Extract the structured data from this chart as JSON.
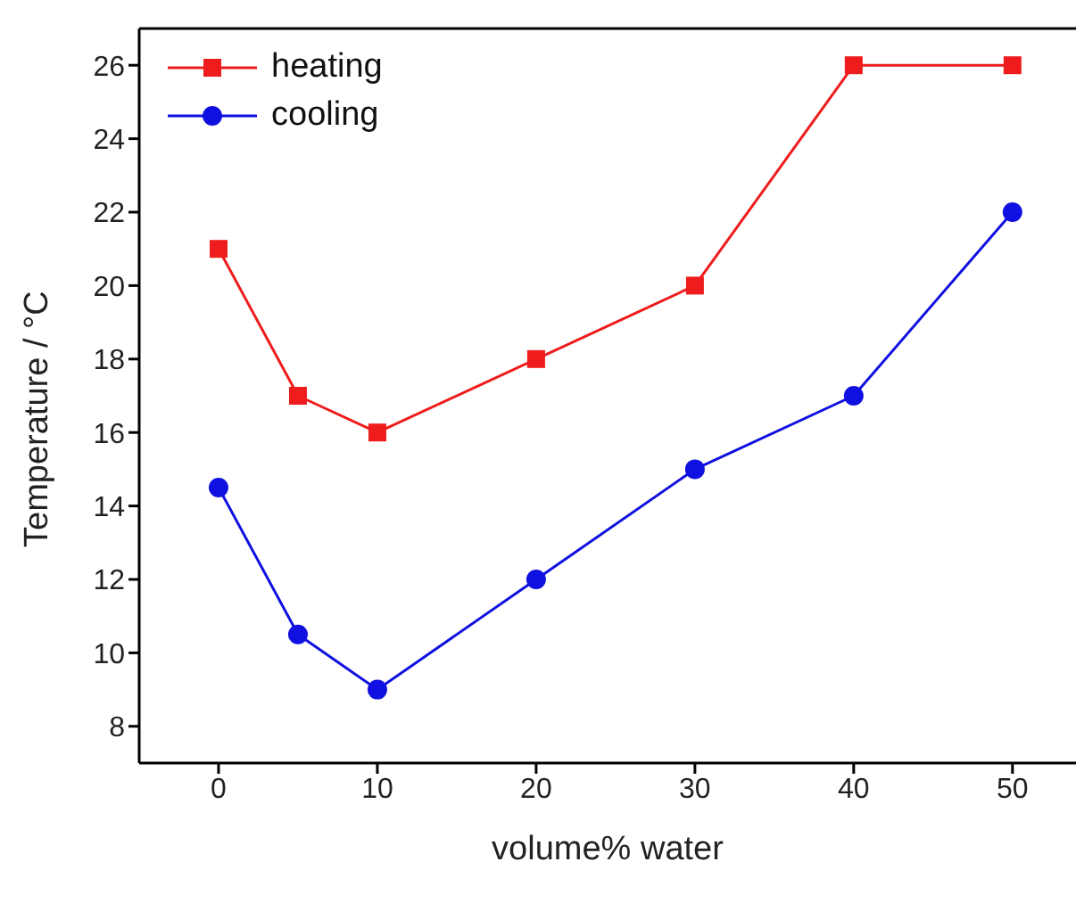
{
  "chart_data": {
    "type": "line",
    "xlabel": "volume% water",
    "ylabel": "Temperature / °C",
    "x": [
      0,
      5,
      10,
      20,
      30,
      40,
      50
    ],
    "series": [
      {
        "name": "heating",
        "color": "#ee1c1c",
        "marker": "square",
        "values": [
          21,
          17,
          16,
          18,
          20,
          26,
          26
        ]
      },
      {
        "name": "cooling",
        "color": "#1010e0",
        "marker": "circle",
        "values": [
          14.5,
          10.5,
          9,
          12,
          15,
          17,
          22
        ]
      }
    ],
    "xlim": [
      -5,
      54
    ],
    "xticks": [
      0,
      10,
      20,
      30,
      40,
      50
    ],
    "ylim": [
      7,
      27
    ],
    "yticks": [
      8,
      10,
      12,
      14,
      16,
      18,
      20,
      22,
      24,
      26
    ],
    "grid": false,
    "legend": "top left"
  }
}
